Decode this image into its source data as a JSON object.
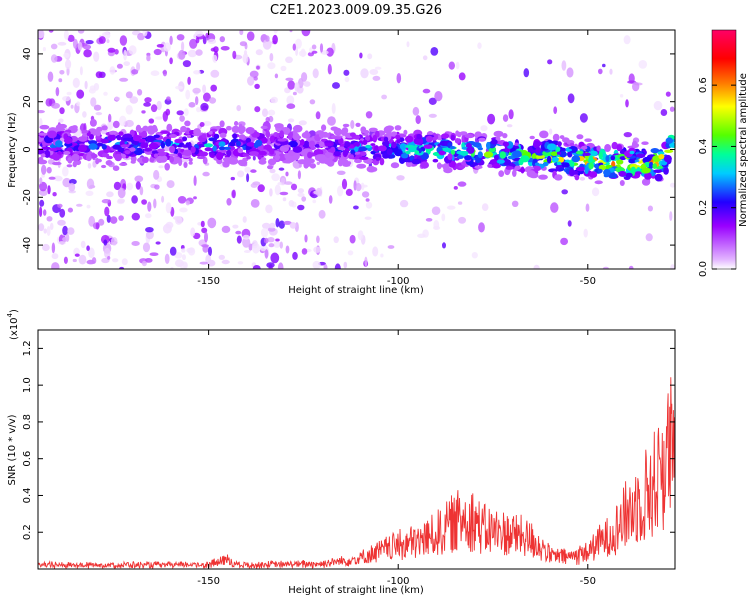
{
  "title": "C2E1.2023.009.09.35.G26",
  "chart_data": [
    {
      "type": "heatmap",
      "xlabel": "Height of straight line (km)",
      "ylabel": "Frequency (Hz)",
      "xlim": [
        -195,
        -27
      ],
      "ylim": [
        -50,
        50
      ],
      "x_ticks": [
        -150,
        -100,
        -50
      ],
      "y_ticks": [
        -40,
        -20,
        0,
        20,
        40
      ],
      "colorbar": {
        "label": "Normalized spectral amplitude",
        "range": [
          0.0,
          0.78
        ],
        "ticks": [
          0.0,
          0.2,
          0.4,
          0.6
        ],
        "colors": [
          "#ffffff",
          "#e2b4ff",
          "#9900ff",
          "#2200ff",
          "#00ccff",
          "#00ff99",
          "#55ff00",
          "#ffff00",
          "#ff7700",
          "#ff0000",
          "#ff0066"
        ]
      },
      "ridge": {
        "x": [
          -195,
          -150,
          -130,
          -120,
          -110,
          -100,
          -90,
          -80,
          -70,
          -60,
          -50,
          -40,
          -30,
          -27
        ],
        "frequency": [
          2,
          2,
          2,
          1,
          1,
          0,
          0,
          -1,
          -2,
          -3,
          -5,
          -6,
          -5,
          5
        ],
        "amplitude": [
          0.25,
          0.3,
          0.2,
          0.15,
          0.3,
          0.35,
          0.4,
          0.42,
          0.45,
          0.5,
          0.55,
          0.6,
          0.6,
          0.45
        ]
      }
    },
    {
      "type": "line",
      "xlabel": "Height of straight line (km)",
      "ylabel": "SNR (10 * v/v)",
      "y_multiplier": "(x10",
      "y_multiplier_exp": "4",
      "xlim": [
        -195,
        -27
      ],
      "ylim": [
        0,
        13000
      ],
      "x_ticks": [
        -150,
        -100,
        -50
      ],
      "y_ticks": [
        2000,
        4000,
        6000,
        8000,
        10000,
        12000
      ],
      "y_tick_labels": [
        "0.2",
        "0.4",
        "0.6",
        "0.8",
        "1.0",
        "1.2"
      ],
      "color": "#ee3333",
      "series": [
        {
          "x": [
            -195,
            -180,
            -160,
            -150,
            -145,
            -143,
            -140,
            -130,
            -120,
            -115,
            -110,
            -105,
            -100,
            -95,
            -90,
            -85,
            -82,
            -80,
            -78,
            -75,
            -72,
            -70,
            -68,
            -65,
            -62,
            -60,
            -55,
            -50,
            -45,
            -42,
            -40,
            -38,
            -35,
            -32,
            -30,
            -28,
            -27
          ],
          "y": [
            300,
            300,
            300,
            350,
            700,
            350,
            300,
            350,
            400,
            600,
            800,
            1300,
            1800,
            2000,
            2600,
            3500,
            4000,
            3700,
            3000,
            2800,
            2700,
            2600,
            2500,
            2200,
            1600,
            1000,
            900,
            1300,
            2400,
            3200,
            4000,
            4600,
            5500,
            6500,
            8000,
            9000,
            7000
          ]
        }
      ]
    }
  ]
}
